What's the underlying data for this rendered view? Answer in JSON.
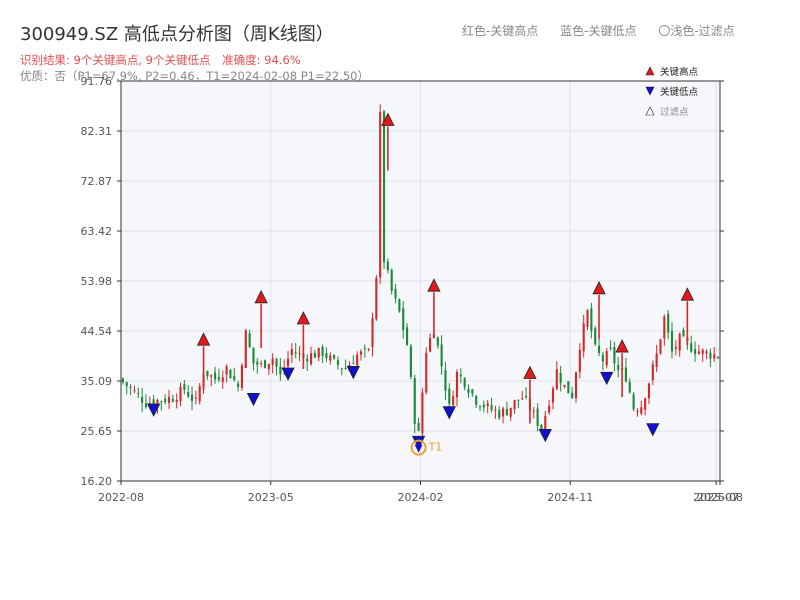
{
  "header": {
    "title": "300949.SZ 高低点分析图（周K线图）",
    "result_label": "识别结果: 9个关键高点, 9个关键低点",
    "accuracy_label": "准确度: 94.6%",
    "quality_label": "优质：否（P1=67.9%, P2=0.46，T1=2024-02-08 P1=22.50）",
    "legend_red": "红色-关键高点",
    "legend_blue": "蓝色-关键低点",
    "legend_light": "〇浅色-过滤点"
  },
  "colors": {
    "up": "#d62728",
    "down": "#1a8a3a",
    "high_marker": "#e31a1c",
    "low_marker": "#1010d0",
    "t1_marker": "#f0a030",
    "plot_bg": "#f5f7fa",
    "grid": "#dde3ea"
  },
  "chart_data": {
    "type": "candlestick",
    "title": "300949.SZ 高低点分析图（周K线图）",
    "ylim": [
      16.2,
      91.76
    ],
    "yticks": [
      16.2,
      25.65,
      35.09,
      44.54,
      53.98,
      63.42,
      72.87,
      82.31,
      91.76
    ],
    "xticks": [
      "2022-08",
      "2023-05",
      "2024-02",
      "2024-11",
      "2025-07",
      "2025-08"
    ],
    "xtick_weeks": [
      0,
      39,
      78,
      117,
      155,
      156
    ],
    "grid": true,
    "legend_position": "top-right",
    "inner_legend": [
      "关键高点",
      "关键低点",
      "过滤点"
    ],
    "week_anchors": [
      [
        0,
        35.5
      ],
      [
        4,
        33.0
      ],
      [
        7,
        31.0
      ],
      [
        11,
        31.5
      ],
      [
        14,
        32.0
      ],
      [
        17,
        33.5
      ],
      [
        20,
        31.0
      ],
      [
        22,
        37.0
      ],
      [
        25,
        35.5
      ],
      [
        28,
        37.5
      ],
      [
        31,
        34.0
      ],
      [
        33,
        44.0
      ],
      [
        35,
        38.5
      ],
      [
        37,
        38.0
      ],
      [
        40,
        39.5
      ],
      [
        42,
        36.0
      ],
      [
        45,
        41.0
      ],
      [
        48,
        39.5
      ],
      [
        50,
        40.0
      ],
      [
        53,
        40.5
      ],
      [
        56,
        38.5
      ],
      [
        59,
        37.5
      ],
      [
        62,
        40.0
      ],
      [
        65,
        40.5
      ],
      [
        67,
        55.0
      ],
      [
        68,
        85.0
      ],
      [
        69,
        58.0
      ],
      [
        71,
        52.0
      ],
      [
        73,
        48.0
      ],
      [
        75,
        42.0
      ],
      [
        77,
        28.0
      ],
      [
        78,
        25.0
      ],
      [
        80,
        41.0
      ],
      [
        82,
        45.0
      ],
      [
        84,
        38.0
      ],
      [
        86,
        30.0
      ],
      [
        88,
        36.5
      ],
      [
        90,
        35.0
      ],
      [
        93,
        31.5
      ],
      [
        96,
        30.0
      ],
      [
        99,
        29.0
      ],
      [
        101,
        29.5
      ],
      [
        103,
        31.0
      ],
      [
        105,
        32.0
      ],
      [
        107,
        30.0
      ],
      [
        110,
        26.0
      ],
      [
        112,
        31.5
      ],
      [
        114,
        37.0
      ],
      [
        116,
        34.0
      ],
      [
        118,
        32.5
      ],
      [
        120,
        42.0
      ],
      [
        122,
        48.0
      ],
      [
        124,
        41.0
      ],
      [
        126,
        39.0
      ],
      [
        128,
        40.5
      ],
      [
        130,
        37.0
      ],
      [
        132,
        36.0
      ],
      [
        134,
        30.0
      ],
      [
        136,
        30.5
      ],
      [
        138,
        35.0
      ],
      [
        140,
        40.0
      ],
      [
        142,
        47.0
      ],
      [
        144,
        40.5
      ],
      [
        146,
        43.0
      ],
      [
        148,
        42.0
      ],
      [
        150,
        41.0
      ],
      [
        152,
        40.5
      ],
      [
        155,
        40.0
      ]
    ],
    "key_highs": [
      {
        "week": 21,
        "price": 42.8
      },
      {
        "week": 36,
        "price": 50.8
      },
      {
        "week": 47,
        "price": 46.8
      },
      {
        "week": 69,
        "price": 84.3
      },
      {
        "week": 81,
        "price": 53.0
      },
      {
        "week": 106,
        "price": 36.5
      },
      {
        "week": 124,
        "price": 52.5
      },
      {
        "week": 130,
        "price": 41.5
      },
      {
        "week": 147,
        "price": 51.3
      }
    ],
    "key_lows": [
      {
        "week": 8,
        "price": 29.8
      },
      {
        "week": 34,
        "price": 31.8
      },
      {
        "week": 43,
        "price": 36.6
      },
      {
        "week": 60,
        "price": 36.9
      },
      {
        "week": 77,
        "price": 23.7
      },
      {
        "week": 85,
        "price": 29.3
      },
      {
        "week": 110,
        "price": 25.0
      },
      {
        "week": 126,
        "price": 35.8
      },
      {
        "week": 138,
        "price": 26.1
      }
    ],
    "t1_point": {
      "week": 77,
      "price": 22.5,
      "label": "T1"
    }
  }
}
